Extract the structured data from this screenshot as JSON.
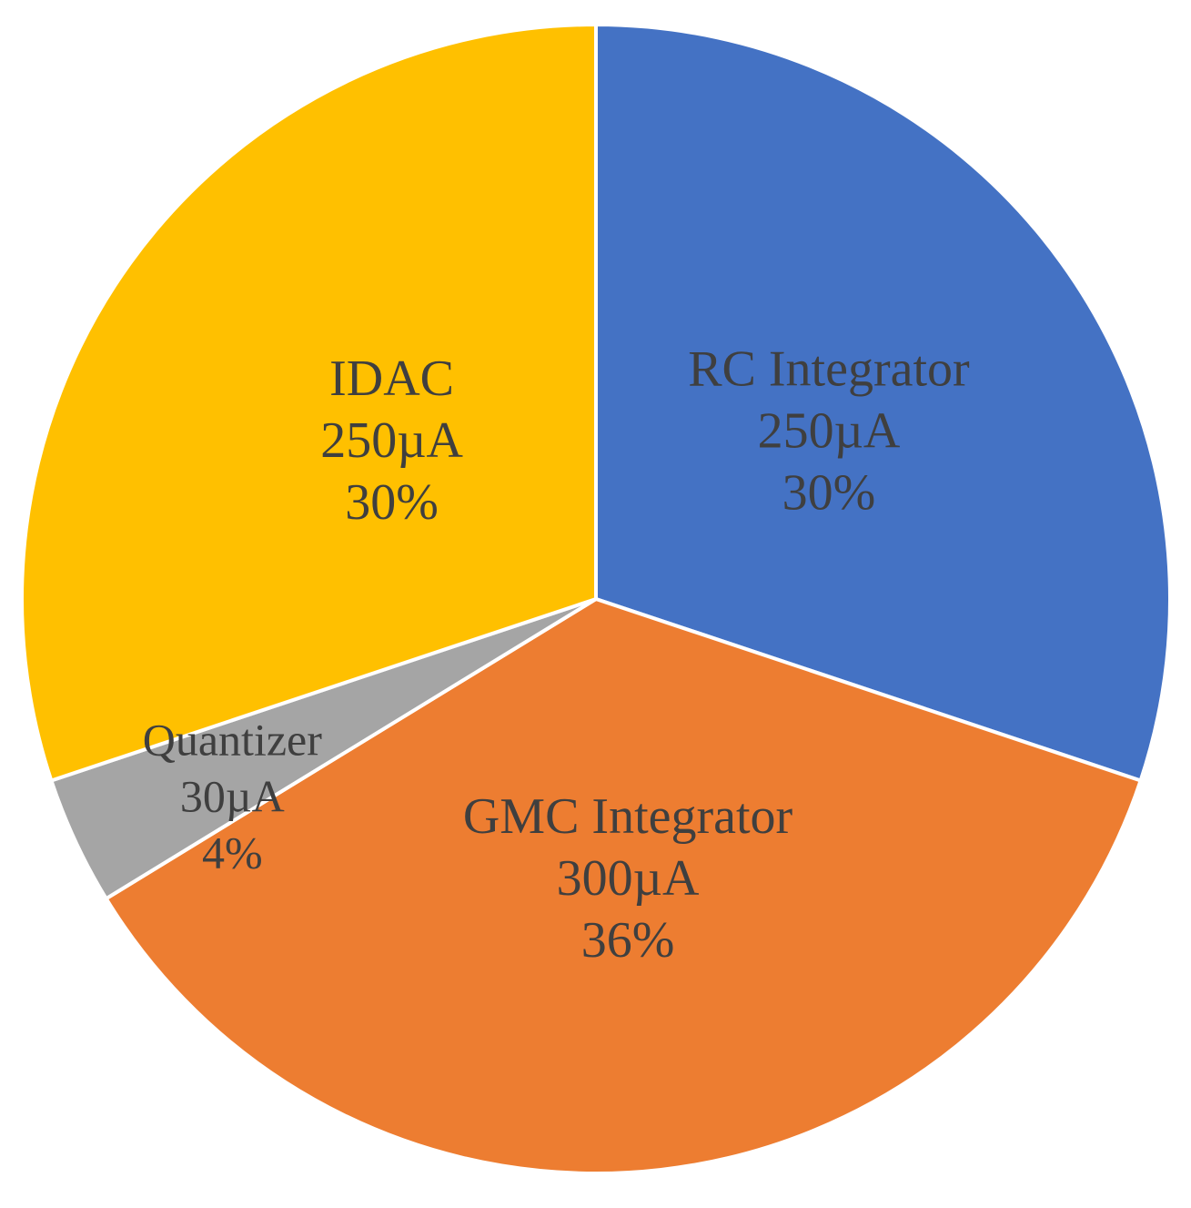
{
  "chart_data": {
    "type": "pie",
    "unit": "µA",
    "start_angle_deg": 0,
    "direction": "clockwise",
    "slices": [
      {
        "label": "RC Integrator",
        "value": 250,
        "value_text": "250µA",
        "percent_text": "30%",
        "color": "#4472C4"
      },
      {
        "label": "GMC Integrator",
        "value": 300,
        "value_text": "300µA",
        "percent_text": "36%",
        "color": "#ED7D31"
      },
      {
        "label": "Quantizer",
        "value": 30,
        "value_text": "30µA",
        "percent_text": "4%",
        "color": "#A5A5A5"
      },
      {
        "label": "IDAC",
        "value": 250,
        "value_text": "250µA",
        "percent_text": "30%",
        "color": "#FFC000"
      }
    ]
  }
}
